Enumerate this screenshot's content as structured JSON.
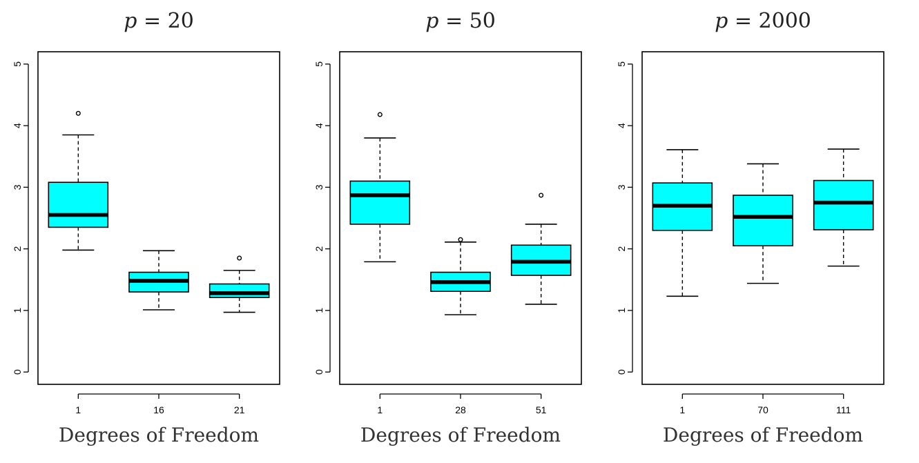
{
  "chart_data": [
    {
      "type": "box",
      "title_var": "p",
      "title_value": "20",
      "xlabel": "Degrees of Freedom",
      "ylabel": "",
      "ylim": [
        -0.2,
        5.2
      ],
      "yticks": [
        0,
        1,
        2,
        3,
        4,
        5
      ],
      "grid": false,
      "legend": "none",
      "categories": [
        "1",
        "16",
        "21"
      ],
      "boxes": [
        {
          "category": "1",
          "whisker_low": 1.98,
          "q1": 2.35,
          "median": 2.55,
          "q3": 3.08,
          "whisker_high": 3.85,
          "outliers": [
            4.2
          ]
        },
        {
          "category": "16",
          "whisker_low": 1.01,
          "q1": 1.3,
          "median": 1.48,
          "q3": 1.62,
          "whisker_high": 1.97,
          "outliers": []
        },
        {
          "category": "21",
          "whisker_low": 0.97,
          "q1": 1.21,
          "median": 1.28,
          "q3": 1.43,
          "whisker_high": 1.65,
          "outliers": [
            1.85
          ]
        }
      ]
    },
    {
      "type": "box",
      "title_var": "p",
      "title_value": "50",
      "xlabel": "Degrees of Freedom",
      "ylabel": "",
      "ylim": [
        -0.2,
        5.2
      ],
      "yticks": [
        0,
        1,
        2,
        3,
        4,
        5
      ],
      "grid": false,
      "legend": "none",
      "categories": [
        "1",
        "28",
        "51"
      ],
      "boxes": [
        {
          "category": "1",
          "whisker_low": 1.79,
          "q1": 2.4,
          "median": 2.87,
          "q3": 3.1,
          "whisker_high": 3.8,
          "outliers": [
            4.18
          ]
        },
        {
          "category": "28",
          "whisker_low": 0.93,
          "q1": 1.31,
          "median": 1.46,
          "q3": 1.62,
          "whisker_high": 2.11,
          "outliers": [
            2.15
          ]
        },
        {
          "category": "51",
          "whisker_low": 1.1,
          "q1": 1.57,
          "median": 1.79,
          "q3": 2.06,
          "whisker_high": 2.4,
          "outliers": [
            2.87
          ]
        }
      ]
    },
    {
      "type": "box",
      "title_var": "p",
      "title_value": "2000",
      "xlabel": "Degrees of Freedom",
      "ylabel": "",
      "ylim": [
        -0.2,
        5.2
      ],
      "yticks": [
        0,
        1,
        2,
        3,
        4,
        5
      ],
      "grid": false,
      "legend": "none",
      "categories": [
        "1",
        "70",
        "111"
      ],
      "boxes": [
        {
          "category": "1",
          "whisker_low": 1.23,
          "q1": 2.3,
          "median": 2.7,
          "q3": 3.07,
          "whisker_high": 3.61,
          "outliers": []
        },
        {
          "category": "70",
          "whisker_low": 1.44,
          "q1": 2.05,
          "median": 2.52,
          "q3": 2.87,
          "whisker_high": 3.38,
          "outliers": []
        },
        {
          "category": "111",
          "whisker_low": 1.72,
          "q1": 2.31,
          "median": 2.75,
          "q3": 3.11,
          "whisker_high": 3.62,
          "outliers": []
        }
      ]
    }
  ],
  "colors": {
    "box_fill": "#00ffff",
    "stroke": "#000000"
  }
}
